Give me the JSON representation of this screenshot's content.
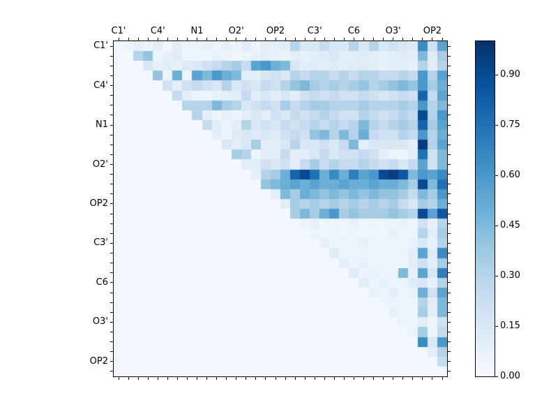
{
  "figure": {
    "background_color": "#ffffff",
    "text_color": "#000000"
  },
  "chart_data": {
    "type": "heatmap",
    "title": "",
    "xlabel": "",
    "ylabel": "",
    "n": 34,
    "grid": false,
    "x_tick_labels": [
      "C1'",
      "C4'",
      "N1",
      "O2'",
      "OP2",
      "C3'",
      "C6",
      "O3'",
      "OP2"
    ],
    "y_tick_labels": [
      "C1'",
      "C4'",
      "N1",
      "O2'",
      "OP2",
      "C3'",
      "C6",
      "O3'",
      "OP2"
    ],
    "label_positions": [
      0,
      4,
      8,
      12,
      16,
      20,
      24,
      28,
      32
    ],
    "minor_ticks_every_cell": true,
    "colorbar": {
      "min": 0.0,
      "max": 1.0,
      "tick_values": [
        0.0,
        0.15,
        0.3,
        0.45,
        0.6,
        0.75,
        0.9
      ],
      "tick_labels": [
        "0.00",
        "0.15",
        "0.30",
        "0.45",
        "0.60",
        "0.75",
        "0.90"
      ],
      "position": "right"
    },
    "colormap": {
      "name": "Blues",
      "stops": [
        {
          "t": 0.0,
          "color": "#f7fbff"
        },
        {
          "t": 0.125,
          "color": "#deebf7"
        },
        {
          "t": 0.25,
          "color": "#c6dbef"
        },
        {
          "t": 0.375,
          "color": "#9ecae1"
        },
        {
          "t": 0.5,
          "color": "#6baed6"
        },
        {
          "t": 0.625,
          "color": "#4292c6"
        },
        {
          "t": 0.75,
          "color": "#2171b5"
        },
        {
          "t": 0.875,
          "color": "#08519c"
        },
        {
          "t": 1.0,
          "color": "#08306b"
        }
      ]
    },
    "matrix": [
      [
        0.02,
        0.05,
        0.08,
        0.05,
        0.1,
        0.03,
        0.1,
        0.05,
        0.05,
        0.08,
        0.05,
        0.08,
        0.05,
        0.1,
        0.05,
        0.1,
        0.08,
        0.1,
        0.3,
        0.15,
        0.15,
        0.25,
        0.15,
        0.15,
        0.3,
        0.15,
        0.3,
        0.15,
        0.2,
        0.15,
        0.12,
        0.65,
        0.2,
        0.55
      ],
      [
        0.02,
        0.02,
        0.3,
        0.4,
        0.05,
        0.08,
        0.12,
        0.05,
        0.06,
        0.05,
        0.08,
        0.06,
        0.03,
        0.05,
        0.08,
        0.1,
        0.08,
        0.06,
        0.1,
        0.08,
        0.1,
        0.12,
        0.15,
        0.1,
        0.1,
        0.12,
        0.1,
        0.08,
        0.1,
        0.12,
        0.1,
        0.45,
        0.12,
        0.35
      ],
      [
        0.02,
        0.02,
        0.02,
        0.15,
        0.08,
        0.1,
        0.08,
        0.12,
        0.15,
        0.2,
        0.25,
        0.3,
        0.35,
        0.25,
        0.55,
        0.6,
        0.5,
        0.45,
        0.15,
        0.1,
        0.12,
        0.1,
        0.12,
        0.1,
        0.12,
        0.12,
        0.1,
        0.08,
        0.1,
        0.1,
        0.08,
        0.3,
        0.1,
        0.3
      ],
      [
        0.02,
        0.02,
        0.02,
        0.02,
        0.4,
        0.05,
        0.5,
        0.05,
        0.55,
        0.45,
        0.6,
        0.5,
        0.45,
        0.1,
        0.1,
        0.15,
        0.2,
        0.15,
        0.3,
        0.25,
        0.3,
        0.3,
        0.25,
        0.3,
        0.25,
        0.3,
        0.3,
        0.25,
        0.25,
        0.3,
        0.25,
        0.6,
        0.3,
        0.55
      ],
      [
        0.02,
        0.02,
        0.02,
        0.02,
        0.02,
        0.2,
        0.1,
        0.2,
        0.25,
        0.2,
        0.15,
        0.3,
        0.15,
        0.2,
        0.15,
        0.25,
        0.2,
        0.3,
        0.4,
        0.45,
        0.35,
        0.3,
        0.35,
        0.3,
        0.35,
        0.4,
        0.3,
        0.35,
        0.4,
        0.45,
        0.4,
        0.6,
        0.35,
        0.5
      ],
      [
        0.02,
        0.02,
        0.02,
        0.02,
        0.02,
        0.02,
        0.25,
        0.1,
        0.05,
        0.05,
        0.08,
        0.1,
        0.1,
        0.25,
        0.1,
        0.15,
        0.1,
        0.15,
        0.1,
        0.2,
        0.25,
        0.2,
        0.25,
        0.2,
        0.2,
        0.25,
        0.2,
        0.15,
        0.2,
        0.25,
        0.2,
        0.8,
        0.25,
        0.55
      ],
      [
        0.02,
        0.02,
        0.02,
        0.02,
        0.02,
        0.02,
        0.02,
        0.3,
        0.3,
        0.3,
        0.45,
        0.35,
        0.3,
        0.15,
        0.2,
        0.25,
        0.2,
        0.35,
        0.25,
        0.3,
        0.35,
        0.35,
        0.3,
        0.3,
        0.3,
        0.35,
        0.3,
        0.3,
        0.3,
        0.35,
        0.3,
        0.6,
        0.3,
        0.45
      ],
      [
        0.02,
        0.02,
        0.02,
        0.02,
        0.02,
        0.02,
        0.02,
        0.02,
        0.3,
        0.1,
        0.05,
        0.08,
        0.05,
        0.1,
        0.15,
        0.1,
        0.2,
        0.15,
        0.25,
        0.2,
        0.25,
        0.3,
        0.25,
        0.2,
        0.2,
        0.3,
        0.25,
        0.2,
        0.25,
        0.3,
        0.25,
        0.9,
        0.3,
        0.6
      ],
      [
        0.02,
        0.02,
        0.02,
        0.02,
        0.02,
        0.02,
        0.02,
        0.02,
        0.02,
        0.25,
        0.1,
        0.05,
        0.1,
        0.3,
        0.15,
        0.2,
        0.15,
        0.25,
        0.2,
        0.25,
        0.3,
        0.25,
        0.3,
        0.25,
        0.3,
        0.45,
        0.3,
        0.25,
        0.3,
        0.35,
        0.3,
        0.8,
        0.35,
        0.55
      ],
      [
        0.02,
        0.02,
        0.02,
        0.02,
        0.02,
        0.02,
        0.02,
        0.02,
        0.02,
        0.02,
        0.1,
        0.05,
        0.12,
        0.15,
        0.12,
        0.15,
        0.12,
        0.2,
        0.25,
        0.2,
        0.4,
        0.45,
        0.3,
        0.45,
        0.3,
        0.5,
        0.25,
        0.2,
        0.2,
        0.3,
        0.25,
        0.6,
        0.3,
        0.5
      ],
      [
        0.02,
        0.02,
        0.02,
        0.02,
        0.02,
        0.02,
        0.02,
        0.02,
        0.02,
        0.02,
        0.02,
        0.15,
        0.1,
        0.15,
        0.35,
        0.1,
        0.1,
        0.15,
        0.3,
        0.15,
        0.15,
        0.2,
        0.15,
        0.25,
        0.45,
        0.1,
        0.15,
        0.15,
        0.15,
        0.15,
        0.1,
        0.95,
        0.3,
        0.55
      ],
      [
        0.02,
        0.02,
        0.02,
        0.02,
        0.02,
        0.02,
        0.02,
        0.02,
        0.02,
        0.02,
        0.02,
        0.02,
        0.35,
        0.3,
        0.05,
        0.1,
        0.1,
        0.25,
        0.1,
        0.1,
        0.15,
        0.25,
        0.15,
        0.2,
        0.2,
        0.25,
        0.2,
        0.1,
        0.05,
        0.05,
        0.1,
        0.75,
        0.2,
        0.45
      ],
      [
        0.02,
        0.02,
        0.02,
        0.02,
        0.02,
        0.02,
        0.02,
        0.02,
        0.02,
        0.02,
        0.02,
        0.02,
        0.02,
        0.1,
        0.1,
        0.2,
        0.15,
        0.2,
        0.1,
        0.25,
        0.35,
        0.25,
        0.3,
        0.25,
        0.25,
        0.3,
        0.25,
        0.2,
        0.25,
        0.15,
        0.25,
        0.55,
        0.2,
        0.45
      ],
      [
        0.02,
        0.02,
        0.02,
        0.02,
        0.02,
        0.02,
        0.02,
        0.02,
        0.02,
        0.02,
        0.02,
        0.02,
        0.02,
        0.02,
        0.1,
        0.3,
        0.35,
        0.5,
        0.8,
        0.9,
        0.75,
        0.5,
        0.65,
        0.5,
        0.7,
        0.55,
        0.6,
        0.9,
        0.95,
        0.85,
        0.45,
        0.6,
        0.55,
        0.65
      ],
      [
        0.02,
        0.02,
        0.02,
        0.02,
        0.02,
        0.02,
        0.02,
        0.02,
        0.02,
        0.02,
        0.02,
        0.02,
        0.02,
        0.02,
        0.02,
        0.4,
        0.45,
        0.5,
        0.55,
        0.5,
        0.55,
        0.5,
        0.5,
        0.55,
        0.5,
        0.5,
        0.55,
        0.5,
        0.5,
        0.45,
        0.35,
        0.9,
        0.45,
        0.75
      ],
      [
        0.02,
        0.02,
        0.02,
        0.02,
        0.02,
        0.02,
        0.02,
        0.02,
        0.02,
        0.02,
        0.02,
        0.02,
        0.02,
        0.02,
        0.02,
        0.02,
        0.1,
        0.45,
        0.35,
        0.5,
        0.45,
        0.4,
        0.45,
        0.4,
        0.45,
        0.4,
        0.45,
        0.4,
        0.4,
        0.35,
        0.25,
        0.45,
        0.35,
        0.6
      ],
      [
        0.02,
        0.02,
        0.02,
        0.02,
        0.02,
        0.02,
        0.02,
        0.02,
        0.02,
        0.02,
        0.02,
        0.02,
        0.02,
        0.02,
        0.02,
        0.02,
        0.02,
        0.1,
        0.35,
        0.3,
        0.35,
        0.3,
        0.35,
        0.3,
        0.35,
        0.3,
        0.35,
        0.3,
        0.35,
        0.25,
        0.15,
        0.35,
        0.3,
        0.5
      ],
      [
        0.02,
        0.02,
        0.02,
        0.02,
        0.02,
        0.02,
        0.02,
        0.02,
        0.02,
        0.02,
        0.02,
        0.02,
        0.02,
        0.02,
        0.02,
        0.02,
        0.02,
        0.02,
        0.35,
        0.45,
        0.35,
        0.5,
        0.6,
        0.35,
        0.4,
        0.35,
        0.35,
        0.35,
        0.4,
        0.35,
        0.3,
        0.9,
        0.55,
        0.85
      ],
      [
        0.02,
        0.02,
        0.02,
        0.02,
        0.02,
        0.02,
        0.02,
        0.02,
        0.02,
        0.02,
        0.02,
        0.02,
        0.02,
        0.02,
        0.02,
        0.02,
        0.02,
        0.02,
        0.02,
        0.05,
        0.08,
        0.05,
        0.05,
        0.05,
        0.08,
        0.05,
        0.05,
        0.05,
        0.05,
        0.08,
        0.05,
        0.2,
        0.08,
        0.3
      ],
      [
        0.02,
        0.02,
        0.02,
        0.02,
        0.02,
        0.02,
        0.02,
        0.02,
        0.02,
        0.02,
        0.02,
        0.02,
        0.02,
        0.02,
        0.02,
        0.02,
        0.02,
        0.02,
        0.02,
        0.02,
        0.06,
        0.04,
        0.05,
        0.04,
        0.05,
        0.04,
        0.05,
        0.04,
        0.08,
        0.05,
        0.05,
        0.3,
        0.1,
        0.35
      ],
      [
        0.02,
        0.02,
        0.02,
        0.02,
        0.02,
        0.02,
        0.02,
        0.02,
        0.02,
        0.02,
        0.02,
        0.02,
        0.02,
        0.02,
        0.02,
        0.02,
        0.02,
        0.02,
        0.02,
        0.02,
        0.02,
        0.08,
        0.05,
        0.06,
        0.05,
        0.08,
        0.05,
        0.05,
        0.05,
        0.05,
        0.08,
        0.15,
        0.08,
        0.3
      ],
      [
        0.02,
        0.02,
        0.02,
        0.02,
        0.02,
        0.02,
        0.02,
        0.02,
        0.02,
        0.02,
        0.02,
        0.02,
        0.02,
        0.02,
        0.02,
        0.02,
        0.02,
        0.02,
        0.02,
        0.02,
        0.02,
        0.02,
        0.12,
        0.06,
        0.05,
        0.06,
        0.05,
        0.05,
        0.06,
        0.05,
        0.1,
        0.55,
        0.12,
        0.65
      ],
      [
        0.02,
        0.02,
        0.02,
        0.02,
        0.02,
        0.02,
        0.02,
        0.02,
        0.02,
        0.02,
        0.02,
        0.02,
        0.02,
        0.02,
        0.02,
        0.02,
        0.02,
        0.02,
        0.02,
        0.02,
        0.02,
        0.02,
        0.02,
        0.1,
        0.05,
        0.08,
        0.05,
        0.05,
        0.06,
        0.05,
        0.1,
        0.2,
        0.1,
        0.35
      ],
      [
        0.02,
        0.02,
        0.02,
        0.02,
        0.02,
        0.02,
        0.02,
        0.02,
        0.02,
        0.02,
        0.02,
        0.02,
        0.02,
        0.02,
        0.02,
        0.02,
        0.02,
        0.02,
        0.02,
        0.02,
        0.02,
        0.02,
        0.02,
        0.02,
        0.12,
        0.05,
        0.08,
        0.05,
        0.05,
        0.45,
        0.08,
        0.55,
        0.15,
        0.7
      ],
      [
        0.02,
        0.02,
        0.02,
        0.02,
        0.02,
        0.02,
        0.02,
        0.02,
        0.02,
        0.02,
        0.02,
        0.02,
        0.02,
        0.02,
        0.02,
        0.02,
        0.02,
        0.02,
        0.02,
        0.02,
        0.02,
        0.02,
        0.02,
        0.02,
        0.02,
        0.1,
        0.05,
        0.08,
        0.05,
        0.05,
        0.12,
        0.15,
        0.08,
        0.3
      ],
      [
        0.02,
        0.02,
        0.02,
        0.02,
        0.02,
        0.02,
        0.02,
        0.02,
        0.02,
        0.02,
        0.02,
        0.02,
        0.02,
        0.02,
        0.02,
        0.02,
        0.02,
        0.02,
        0.02,
        0.02,
        0.02,
        0.02,
        0.02,
        0.02,
        0.02,
        0.02,
        0.08,
        0.05,
        0.1,
        0.05,
        0.08,
        0.5,
        0.2,
        0.55
      ],
      [
        0.02,
        0.02,
        0.02,
        0.02,
        0.02,
        0.02,
        0.02,
        0.02,
        0.02,
        0.02,
        0.02,
        0.02,
        0.02,
        0.02,
        0.02,
        0.02,
        0.02,
        0.02,
        0.02,
        0.02,
        0.02,
        0.02,
        0.02,
        0.02,
        0.02,
        0.02,
        0.02,
        0.05,
        0.05,
        0.05,
        0.05,
        0.3,
        0.1,
        0.45
      ],
      [
        0.02,
        0.02,
        0.02,
        0.02,
        0.02,
        0.02,
        0.02,
        0.02,
        0.02,
        0.02,
        0.02,
        0.02,
        0.02,
        0.02,
        0.02,
        0.02,
        0.02,
        0.02,
        0.02,
        0.02,
        0.02,
        0.02,
        0.02,
        0.02,
        0.02,
        0.02,
        0.02,
        0.02,
        0.08,
        0.05,
        0.05,
        0.35,
        0.1,
        0.45
      ],
      [
        0.02,
        0.02,
        0.02,
        0.02,
        0.02,
        0.02,
        0.02,
        0.02,
        0.02,
        0.02,
        0.02,
        0.02,
        0.02,
        0.02,
        0.02,
        0.02,
        0.02,
        0.02,
        0.02,
        0.02,
        0.02,
        0.02,
        0.02,
        0.02,
        0.02,
        0.02,
        0.02,
        0.02,
        0.02,
        0.06,
        0.05,
        0.1,
        0.05,
        0.2
      ],
      [
        0.02,
        0.02,
        0.02,
        0.02,
        0.02,
        0.02,
        0.02,
        0.02,
        0.02,
        0.02,
        0.02,
        0.02,
        0.02,
        0.02,
        0.02,
        0.02,
        0.02,
        0.02,
        0.02,
        0.02,
        0.02,
        0.02,
        0.02,
        0.02,
        0.02,
        0.02,
        0.02,
        0.02,
        0.02,
        0.02,
        0.06,
        0.35,
        0.05,
        0.25
      ],
      [
        0.02,
        0.02,
        0.02,
        0.02,
        0.02,
        0.02,
        0.02,
        0.02,
        0.02,
        0.02,
        0.02,
        0.02,
        0.02,
        0.02,
        0.02,
        0.02,
        0.02,
        0.02,
        0.02,
        0.02,
        0.02,
        0.02,
        0.02,
        0.02,
        0.02,
        0.02,
        0.02,
        0.02,
        0.02,
        0.02,
        0.02,
        0.65,
        0.15,
        0.6
      ],
      [
        0.02,
        0.02,
        0.02,
        0.02,
        0.02,
        0.02,
        0.02,
        0.02,
        0.02,
        0.02,
        0.02,
        0.02,
        0.02,
        0.02,
        0.02,
        0.02,
        0.02,
        0.02,
        0.02,
        0.02,
        0.02,
        0.02,
        0.02,
        0.02,
        0.02,
        0.02,
        0.02,
        0.02,
        0.02,
        0.02,
        0.02,
        0.02,
        0.1,
        0.3
      ],
      [
        0.02,
        0.02,
        0.02,
        0.02,
        0.02,
        0.02,
        0.02,
        0.02,
        0.02,
        0.02,
        0.02,
        0.02,
        0.02,
        0.02,
        0.02,
        0.02,
        0.02,
        0.02,
        0.02,
        0.02,
        0.02,
        0.02,
        0.02,
        0.02,
        0.02,
        0.02,
        0.02,
        0.02,
        0.02,
        0.02,
        0.02,
        0.02,
        0.02,
        0.25
      ],
      [
        0.02,
        0.02,
        0.02,
        0.02,
        0.02,
        0.02,
        0.02,
        0.02,
        0.02,
        0.02,
        0.02,
        0.02,
        0.02,
        0.02,
        0.02,
        0.02,
        0.02,
        0.02,
        0.02,
        0.02,
        0.02,
        0.02,
        0.02,
        0.02,
        0.02,
        0.02,
        0.02,
        0.02,
        0.02,
        0.02,
        0.02,
        0.02,
        0.02,
        0.02
      ]
    ]
  }
}
